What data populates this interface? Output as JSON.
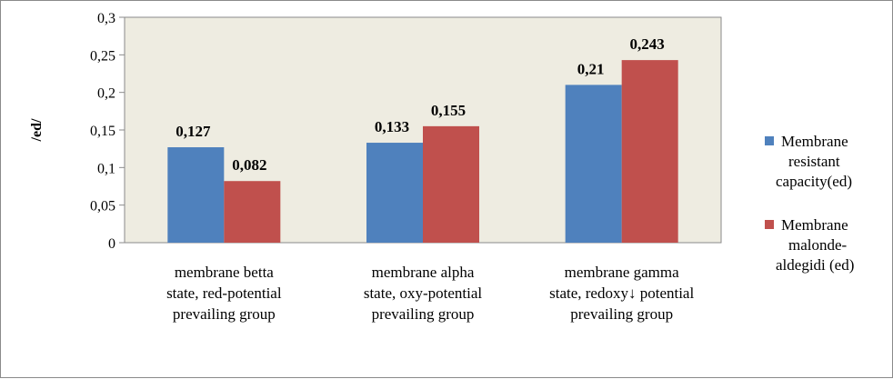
{
  "chart_data": {
    "type": "bar",
    "title": "",
    "ylabel": "/ed/",
    "xlabel": "",
    "ylim": [
      0,
      0.3
    ],
    "yticks": [
      0,
      0.05,
      0.1,
      0.15,
      0.2,
      0.25,
      0.3
    ],
    "ytick_labels": [
      "0",
      "0,05",
      "0,1",
      "0,15",
      "0,2",
      "0,25",
      "0,3"
    ],
    "grid": false,
    "legend": "right",
    "plot_background": "#eeece1",
    "categories": [
      [
        "membrane betta",
        "state, red-potential",
        "prevailing group"
      ],
      [
        "membrane alpha",
        "state, oxy-potential",
        "prevailing group"
      ],
      [
        "membrane gamma",
        "state, redoxy↓ potential",
        "prevailing group"
      ]
    ],
    "series": [
      {
        "name_lines": [
          "Membrane",
          "resistant",
          "capacity(ed)"
        ],
        "color": "#4f81bd",
        "values": [
          0.127,
          0.133,
          0.21
        ],
        "labels": [
          "0,127",
          "0,133",
          "0,21"
        ]
      },
      {
        "name_lines": [
          "Membrane",
          "malonde-",
          "aldegidi (ed)"
        ],
        "color": "#c0504d",
        "values": [
          0.082,
          0.155,
          0.243
        ],
        "labels": [
          "0,082",
          "0,155",
          "0,243"
        ]
      }
    ]
  }
}
